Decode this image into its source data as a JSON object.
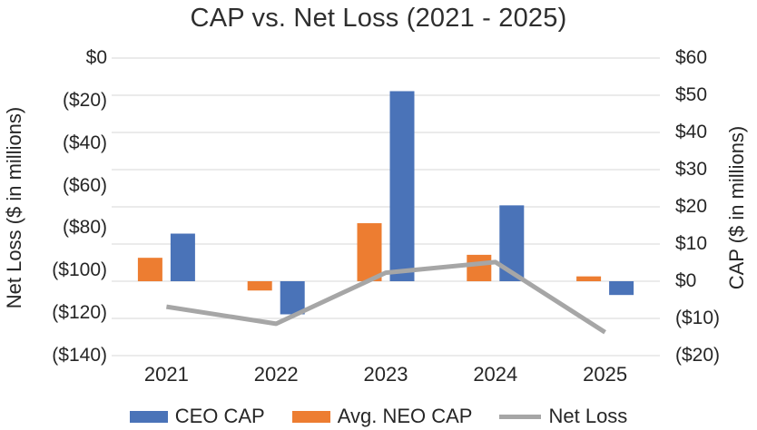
{
  "chart_data": {
    "type": "bar",
    "subtype": "combo-clustered-bar-and-line-dual-axis",
    "title": "CAP vs. Net Loss (2021 - 2025)",
    "categories": [
      "2021",
      "2022",
      "2023",
      "2024",
      "2025"
    ],
    "series": [
      {
        "name": "CEO CAP",
        "type": "bar",
        "axis": "right",
        "color": "#4a73b8",
        "values": [
          12.8,
          -8.9,
          51.1,
          20.4,
          -3.7
        ]
      },
      {
        "name": "Avg. NEO CAP",
        "type": "bar",
        "axis": "right",
        "color": "#ed7d31",
        "values": [
          6.3,
          -2.5,
          15.6,
          7.1,
          1.3
        ]
      },
      {
        "name": "Net Loss",
        "type": "line",
        "axis": "left",
        "color": "#a6a6a6",
        "values": [
          -117,
          -125,
          -101,
          -96,
          -129
        ]
      }
    ],
    "left_axis": {
      "label": "Net Loss ($ in millions)",
      "min": -140,
      "max": 0,
      "ticks": [
        "$0",
        "($20)",
        "($40)",
        "($60)",
        "($80)",
        "($100)",
        "($120)",
        "($140)"
      ]
    },
    "right_axis": {
      "label": "CAP ($ in millions)",
      "min": -20,
      "max": 60,
      "ticks": [
        "$60",
        "$50",
        "$40",
        "$30",
        "$20",
        "$10",
        "$0",
        "($10)",
        "($20)"
      ]
    },
    "grid": true,
    "gridline_color": "#dfdfdf",
    "legend_position": "bottom"
  }
}
